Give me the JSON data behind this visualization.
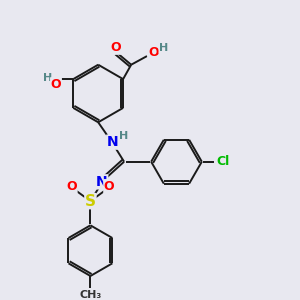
{
  "bg_color": "#e8e8f0",
  "bond_color": "#1a1a1a",
  "bond_width": 1.4,
  "atom_colors": {
    "O": "#ff0000",
    "N": "#0000ee",
    "S": "#cccc00",
    "Cl": "#00bb00",
    "H": "#558888",
    "C": "#1a1a1a"
  }
}
